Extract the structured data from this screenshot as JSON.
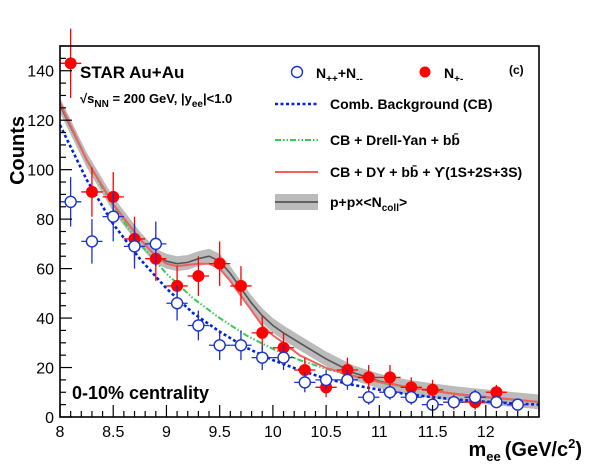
{
  "chart_data": {
    "type": "scatter",
    "xlabel": "m_ee (GeV/c²)",
    "xlabel_main": "m",
    "xlabel_sub": "ee",
    "xlabel_unit": "(GeV/c",
    "xlabel_unit_sup": "2",
    "xlabel_unit_close": ")",
    "ylabel": "Counts",
    "xlim": [
      8,
      12.5
    ],
    "ylim": [
      0,
      150
    ],
    "x_ticks": [
      8,
      8.5,
      9,
      9.5,
      10,
      10.5,
      11,
      11.5,
      12
    ],
    "x_tick_labels": [
      "8",
      "8.5",
      "9",
      "9.5",
      "10",
      "10.5",
      "11",
      "11.5",
      "12"
    ],
    "y_ticks": [
      0,
      20,
      40,
      60,
      80,
      100,
      120,
      140
    ],
    "y_tick_labels": [
      "0",
      "20",
      "40",
      "60",
      "80",
      "100",
      "120",
      "140"
    ],
    "grid": false,
    "annotations": {
      "experiment": "STAR Au+Au",
      "energy_prefix": "√s",
      "energy_sub": "NN",
      "energy_mid": " = 200 GeV, |y",
      "energy_sub2": "ee",
      "energy_suffix": "|<1.0",
      "centrality": "0-10% centrality",
      "panel": "(c)"
    },
    "legend_placement": "top-right",
    "legend": {
      "like_sign_main": "N",
      "like_sign_sub1": "++",
      "like_sign_mid": "+N",
      "like_sign_sub2": "--",
      "unlike_sign_main": "N",
      "unlike_sign_sub": "+-",
      "comb_bg": "Comb. Background (CB)",
      "cb_dy_bb": "CB + Drell-Yan + bb̄",
      "cb_dy_bb_ups": "CB + DY + bb̄ + ϒ(1S+2S+3S)",
      "pp_ncoll_main": "p+p×<N",
      "pp_ncoll_sub": "coll",
      "pp_ncoll_close": ">"
    },
    "colors": {
      "unlike_sign": "#ff0000",
      "like_sign": "#1a33cc",
      "comb_bg": "#0022dd",
      "cb_dy_bb": "#33cc55",
      "cb_dy_bb_ups": "#f06060",
      "pp_line": "#555555",
      "pp_band": "#bbbbbb"
    },
    "series": [
      {
        "key": "unlike_sign",
        "marker": "filled-circle",
        "points": [
          {
            "x": 8.1,
            "y": 143,
            "err": 14
          },
          {
            "x": 8.3,
            "y": 91,
            "err": 10
          },
          {
            "x": 8.5,
            "y": 89,
            "err": 10
          },
          {
            "x": 8.7,
            "y": 72,
            "err": 9
          },
          {
            "x": 8.9,
            "y": 64,
            "err": 9
          },
          {
            "x": 9.1,
            "y": 53,
            "err": 8
          },
          {
            "x": 9.3,
            "y": 57,
            "err": 8
          },
          {
            "x": 9.5,
            "y": 62,
            "err": 9
          },
          {
            "x": 9.7,
            "y": 53,
            "err": 8
          },
          {
            "x": 9.9,
            "y": 34,
            "err": 7
          },
          {
            "x": 10.1,
            "y": 28,
            "err": 6
          },
          {
            "x": 10.3,
            "y": 19,
            "err": 5
          },
          {
            "x": 10.5,
            "y": 12,
            "err": 4
          },
          {
            "x": 10.7,
            "y": 19,
            "err": 5
          },
          {
            "x": 10.9,
            "y": 16,
            "err": 5
          },
          {
            "x": 11.1,
            "y": 16,
            "err": 5
          },
          {
            "x": 11.3,
            "y": 12,
            "err": 4
          },
          {
            "x": 11.5,
            "y": 11,
            "err": 4
          },
          {
            "x": 11.7,
            "y": 6,
            "err": 3
          },
          {
            "x": 11.9,
            "y": 6,
            "err": 3
          },
          {
            "x": 12.1,
            "y": 10,
            "err": 3
          },
          {
            "x": 12.3,
            "y": 5,
            "err": 2
          }
        ]
      },
      {
        "key": "like_sign",
        "marker": "open-circle",
        "points": [
          {
            "x": 8.1,
            "y": 87,
            "err": 10
          },
          {
            "x": 8.3,
            "y": 71,
            "err": 9
          },
          {
            "x": 8.5,
            "y": 81,
            "err": 10
          },
          {
            "x": 8.7,
            "y": 69,
            "err": 9
          },
          {
            "x": 8.9,
            "y": 70,
            "err": 9
          },
          {
            "x": 9.1,
            "y": 46,
            "err": 7
          },
          {
            "x": 9.3,
            "y": 37,
            "err": 6
          },
          {
            "x": 9.5,
            "y": 29,
            "err": 6
          },
          {
            "x": 9.7,
            "y": 29,
            "err": 6
          },
          {
            "x": 9.9,
            "y": 24,
            "err": 5
          },
          {
            "x": 10.1,
            "y": 24,
            "err": 5
          },
          {
            "x": 10.3,
            "y": 14,
            "err": 4
          },
          {
            "x": 10.5,
            "y": 15,
            "err": 4
          },
          {
            "x": 10.7,
            "y": 15,
            "err": 4
          },
          {
            "x": 10.9,
            "y": 8,
            "err": 3
          },
          {
            "x": 11.1,
            "y": 10,
            "err": 3
          },
          {
            "x": 11.3,
            "y": 8,
            "err": 3
          },
          {
            "x": 11.5,
            "y": 5,
            "err": 2
          },
          {
            "x": 11.7,
            "y": 6,
            "err": 2
          },
          {
            "x": 11.9,
            "y": 8,
            "err": 3
          },
          {
            "x": 12.1,
            "y": 6,
            "err": 2
          },
          {
            "x": 12.3,
            "y": 5,
            "err": 2
          }
        ]
      }
    ],
    "curves": [
      {
        "key": "comb_bg",
        "style": "dashed",
        "points": [
          [
            8.0,
            118
          ],
          [
            8.25,
            96
          ],
          [
            8.5,
            78
          ],
          [
            8.75,
            64
          ],
          [
            9.0,
            52
          ],
          [
            9.25,
            42
          ],
          [
            9.5,
            34.5
          ],
          [
            9.75,
            28
          ],
          [
            10.0,
            23
          ],
          [
            10.25,
            19
          ],
          [
            10.5,
            15.5
          ],
          [
            10.75,
            13
          ],
          [
            11.0,
            11
          ],
          [
            11.25,
            9.3
          ],
          [
            11.5,
            8
          ],
          [
            11.75,
            7
          ],
          [
            12.0,
            6.2
          ],
          [
            12.25,
            5.5
          ],
          [
            12.5,
            5
          ]
        ]
      },
      {
        "key": "cb_dy_bb",
        "style": "dash-dot",
        "points": [
          [
            8.0,
            127
          ],
          [
            8.25,
            104
          ],
          [
            8.5,
            85
          ],
          [
            8.75,
            70
          ],
          [
            9.0,
            58
          ],
          [
            9.25,
            48
          ],
          [
            9.5,
            40
          ],
          [
            9.75,
            33
          ],
          [
            10.0,
            27.5
          ],
          [
            10.25,
            23
          ],
          [
            10.5,
            19.5
          ],
          [
            10.75,
            16.5
          ],
          [
            11.0,
            14
          ],
          [
            11.25,
            12
          ],
          [
            11.5,
            10.5
          ],
          [
            11.75,
            9
          ],
          [
            12.0,
            8
          ],
          [
            12.25,
            7
          ],
          [
            12.5,
            6
          ]
        ]
      },
      {
        "key": "cb_dy_bb_ups",
        "style": "solid",
        "points": [
          [
            8.0,
            127
          ],
          [
            8.25,
            104
          ],
          [
            8.5,
            86
          ],
          [
            8.75,
            72
          ],
          [
            8.9,
            65
          ],
          [
            9.0,
            62
          ],
          [
            9.1,
            61
          ],
          [
            9.2,
            61.5
          ],
          [
            9.3,
            62
          ],
          [
            9.4,
            62
          ],
          [
            9.5,
            60
          ],
          [
            9.6,
            55
          ],
          [
            9.7,
            49
          ],
          [
            9.8,
            43
          ],
          [
            9.9,
            37
          ],
          [
            10.0,
            33
          ],
          [
            10.1,
            30
          ],
          [
            10.25,
            25
          ],
          [
            10.5,
            19.8
          ],
          [
            10.75,
            16.7
          ],
          [
            11.0,
            14.2
          ],
          [
            11.25,
            12.2
          ],
          [
            11.5,
            10.6
          ],
          [
            11.75,
            9.1
          ],
          [
            12.0,
            8.1
          ],
          [
            12.25,
            7.1
          ],
          [
            12.5,
            6.1
          ]
        ]
      },
      {
        "key": "pp_line",
        "style": "solid-band",
        "band_halfwidth": 3,
        "points": [
          [
            8.0,
            126
          ],
          [
            8.25,
            104
          ],
          [
            8.5,
            86
          ],
          [
            8.75,
            72
          ],
          [
            8.9,
            65
          ],
          [
            9.0,
            63
          ],
          [
            9.1,
            62
          ],
          [
            9.2,
            62.5
          ],
          [
            9.3,
            64
          ],
          [
            9.4,
            65
          ],
          [
            9.5,
            63
          ],
          [
            9.6,
            58
          ],
          [
            9.7,
            52
          ],
          [
            9.8,
            46
          ],
          [
            9.9,
            41
          ],
          [
            10.0,
            37
          ],
          [
            10.1,
            34
          ],
          [
            10.25,
            30
          ],
          [
            10.5,
            23.5
          ],
          [
            10.75,
            18
          ],
          [
            11.0,
            14.5
          ],
          [
            11.25,
            12.2
          ],
          [
            11.5,
            10.6
          ],
          [
            11.75,
            9.2
          ],
          [
            12.0,
            8.1
          ],
          [
            12.25,
            7.1
          ],
          [
            12.5,
            6.1
          ]
        ]
      }
    ]
  }
}
